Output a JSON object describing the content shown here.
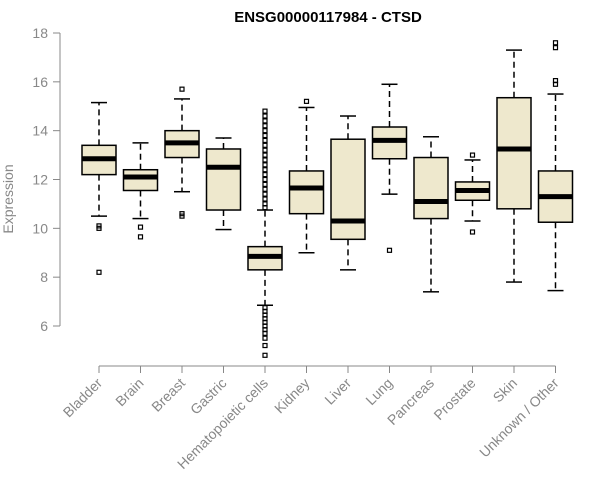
{
  "chart_data": {
    "type": "boxplot",
    "title": "ENSG00000117984 - CTSD",
    "xlabel": "",
    "ylabel": "Expression",
    "ylim": [
      4.6,
      18
    ],
    "yticks": [
      6,
      8,
      10,
      12,
      14,
      16,
      18
    ],
    "yticks_labels": [
      "6",
      "8",
      "10",
      "12",
      "14",
      "16",
      "18"
    ],
    "box_fill": "#eee8cd",
    "categories": [
      "Bladder",
      "Brain",
      "Breast",
      "Gastric",
      "Hematopoietic cells",
      "Kidney",
      "Liver",
      "Lung",
      "Pancreas",
      "Prostate",
      "Skin",
      "Unknown / Other"
    ],
    "boxes": [
      {
        "min": 10.5,
        "q1": 12.2,
        "median": 12.85,
        "q3": 13.4,
        "max": 15.15,
        "outliers": [
          10.1,
          10.0,
          8.2
        ]
      },
      {
        "min": 10.4,
        "q1": 11.55,
        "median": 12.1,
        "q3": 12.4,
        "max": 13.5,
        "outliers": [
          10.05,
          9.65
        ]
      },
      {
        "min": 11.5,
        "q1": 12.9,
        "median": 13.5,
        "q3": 14.0,
        "max": 15.3,
        "outliers": [
          15.7,
          10.6,
          10.5
        ]
      },
      {
        "min": 9.95,
        "q1": 10.75,
        "median": 12.5,
        "q3": 13.25,
        "max": 13.7,
        "outliers": []
      },
      {
        "min": 6.85,
        "q1": 8.3,
        "median": 8.85,
        "q3": 9.25,
        "max": 10.75,
        "outliers": [
          14.8,
          14.6,
          14.4,
          14.2,
          14.0,
          13.8,
          13.6,
          13.4,
          13.2,
          13.0,
          12.8,
          12.6,
          12.4,
          12.2,
          12.0,
          11.8,
          11.6,
          11.4,
          11.2,
          11.0,
          10.85,
          6.75,
          6.6,
          6.45,
          6.3,
          6.15,
          6.0,
          5.85,
          5.7,
          5.5,
          5.2,
          4.8
        ]
      },
      {
        "min": 9.0,
        "q1": 10.6,
        "median": 11.65,
        "q3": 12.35,
        "max": 14.95,
        "outliers": [
          15.2
        ]
      },
      {
        "min": 8.3,
        "q1": 9.55,
        "median": 10.3,
        "q3": 13.65,
        "max": 14.6,
        "outliers": []
      },
      {
        "min": 11.4,
        "q1": 12.85,
        "median": 13.6,
        "q3": 14.15,
        "max": 15.9,
        "outliers": [
          9.1
        ]
      },
      {
        "min": 7.4,
        "q1": 10.4,
        "median": 11.1,
        "q3": 12.9,
        "max": 13.75,
        "outliers": []
      },
      {
        "min": 10.3,
        "q1": 11.15,
        "median": 11.55,
        "q3": 11.9,
        "max": 12.8,
        "outliers": [
          13.0,
          9.85
        ]
      },
      {
        "min": 7.8,
        "q1": 10.8,
        "median": 13.25,
        "q3": 15.35,
        "max": 17.3,
        "outliers": []
      },
      {
        "min": 7.45,
        "q1": 10.25,
        "median": 11.3,
        "q3": 12.35,
        "max": 15.5,
        "outliers": [
          17.6,
          17.4,
          16.05,
          15.9
        ]
      }
    ]
  }
}
